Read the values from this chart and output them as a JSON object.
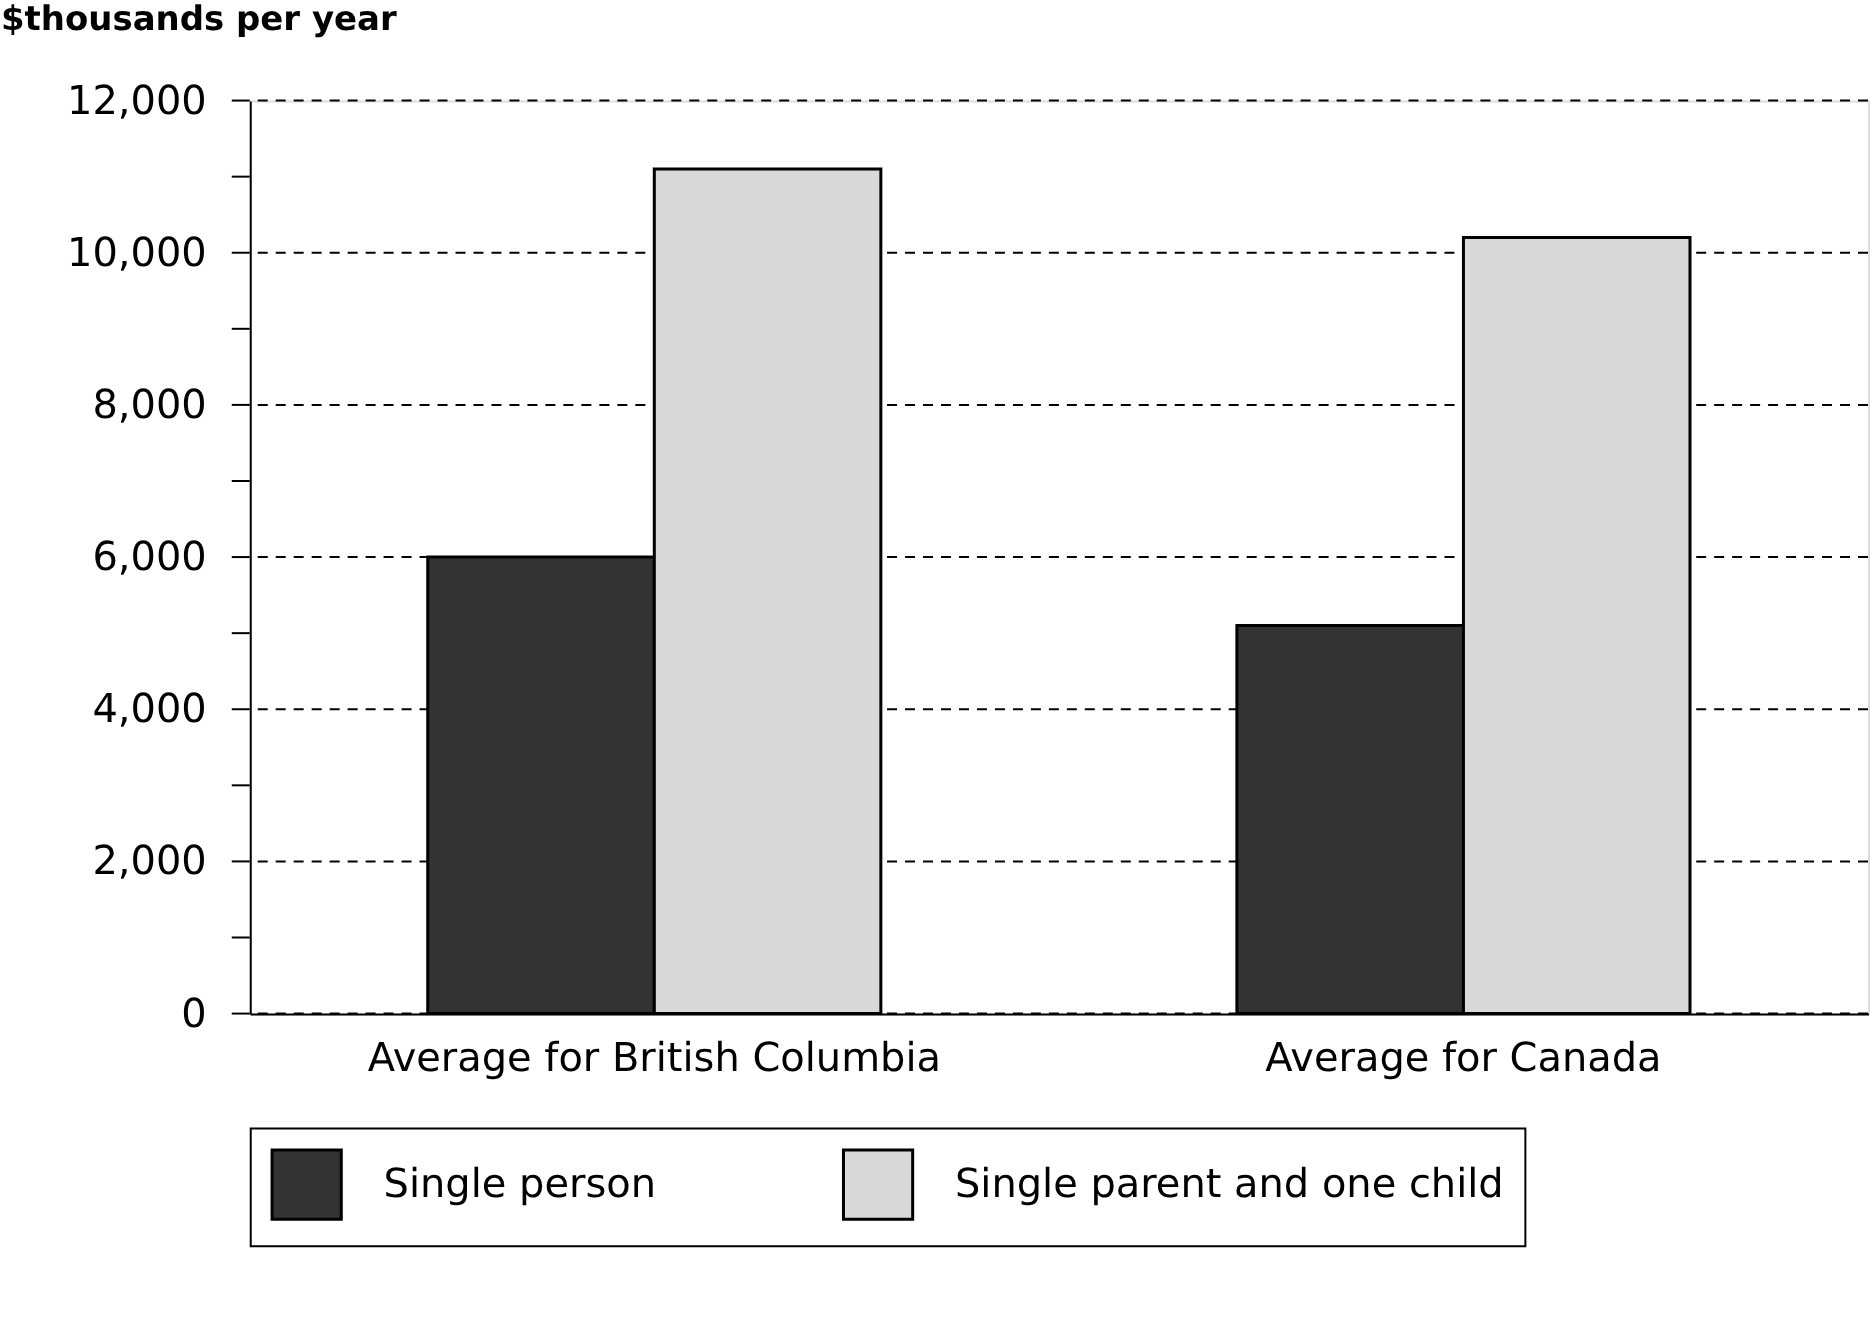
{
  "chart_data": {
    "type": "bar",
    "ylabel": "$thousands per year",
    "categories": [
      "Average for British Columbia",
      "Average for Canada"
    ],
    "series": [
      {
        "name": "Single person",
        "color": "#333333",
        "values": [
          6000,
          5100
        ]
      },
      {
        "name": "Single parent and one child",
        "color": "#d9d9d9",
        "values": [
          11100,
          10200
        ]
      }
    ],
    "ylim": [
      0,
      12000
    ],
    "yticks": [
      0,
      {
        "value": 1000,
        "label": null
      },
      {
        "value": 2000,
        "label": "2,000"
      },
      {
        "value": 3000,
        "label": null
      },
      {
        "value": 4000,
        "label": "4,000"
      },
      {
        "value": 5000,
        "label": null
      },
      {
        "value": 6000,
        "label": "6,000"
      },
      {
        "value": 7000,
        "label": null
      },
      {
        "value": 8000,
        "label": "8,000"
      },
      {
        "value": 9000,
        "label": null
      },
      {
        "value": 10000,
        "label": "10,000"
      },
      {
        "value": 11000,
        "label": null
      },
      {
        "value": 12000,
        "label": "12,000"
      }
    ],
    "grid": "y",
    "line_style": "dashed",
    "legend": "bottom"
  }
}
